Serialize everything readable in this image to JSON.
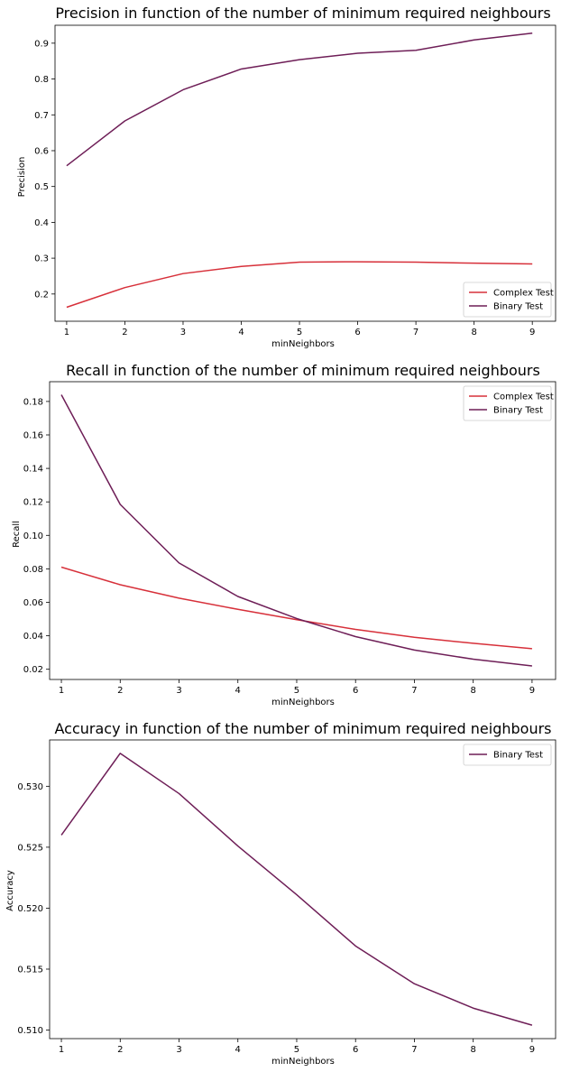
{
  "colors": {
    "complex": "#d7303a",
    "binary": "#6e1e57"
  },
  "chart_data": [
    {
      "type": "line",
      "title": "Precision in function of the number of minimum required neighbours",
      "xlabel": "minNeighbors",
      "ylabel": "Precision",
      "x": [
        1,
        2,
        3,
        4,
        5,
        6,
        7,
        8,
        9
      ],
      "xlim": [
        0.8,
        9.4
      ],
      "ylim": [
        0.124,
        0.95
      ],
      "xticks": [
        "1",
        "2",
        "3",
        "4",
        "5",
        "6",
        "7",
        "8",
        "9"
      ],
      "yticks": [
        "0.2",
        "0.3",
        "0.4",
        "0.5",
        "0.6",
        "0.7",
        "0.8",
        "0.9"
      ],
      "ytick_values": [
        0.2,
        0.3,
        0.4,
        0.5,
        0.6,
        0.7,
        0.8,
        0.9
      ],
      "legend_position": "lower-right",
      "series": [
        {
          "name": "Complex Test",
          "color_key": "complex",
          "values": [
            0.163,
            0.218,
            0.257,
            0.277,
            0.289,
            0.29,
            0.289,
            0.286,
            0.284
          ]
        },
        {
          "name": "Binary Test",
          "color_key": "binary",
          "values": [
            0.558,
            0.683,
            0.77,
            0.828,
            0.854,
            0.872,
            0.88,
            0.909,
            0.928
          ]
        }
      ]
    },
    {
      "type": "line",
      "title": "Recall in function of the number of minimum required neighbours",
      "xlabel": "minNeighbors",
      "ylabel": "Recall",
      "x": [
        1,
        2,
        3,
        4,
        5,
        6,
        7,
        8,
        9
      ],
      "xlim": [
        0.8,
        9.4
      ],
      "ylim": [
        0.0139,
        0.1918
      ],
      "xticks": [
        "1",
        "2",
        "3",
        "4",
        "5",
        "6",
        "7",
        "8",
        "9"
      ],
      "yticks": [
        "0.02",
        "0.04",
        "0.06",
        "0.08",
        "0.10",
        "0.12",
        "0.14",
        "0.16",
        "0.18"
      ],
      "ytick_values": [
        0.02,
        0.04,
        0.06,
        0.08,
        0.1,
        0.12,
        0.14,
        0.16,
        0.18
      ],
      "legend_position": "upper-right",
      "series": [
        {
          "name": "Complex Test",
          "color_key": "complex",
          "values": [
            0.081,
            0.0705,
            0.0625,
            0.0558,
            0.0496,
            0.0438,
            0.0391,
            0.0355,
            0.0323
          ]
        },
        {
          "name": "Binary Test",
          "color_key": "binary",
          "values": [
            0.184,
            0.1185,
            0.0835,
            0.0635,
            0.0503,
            0.0395,
            0.0315,
            0.026,
            0.022
          ]
        }
      ]
    },
    {
      "type": "line",
      "title": "Accuracy in function of the number of minimum required neighbours",
      "xlabel": "minNeighbors",
      "ylabel": "Accuracy",
      "x": [
        1,
        2,
        3,
        4,
        5,
        6,
        7,
        8,
        9
      ],
      "xlim": [
        0.8,
        9.4
      ],
      "ylim": [
        0.5093,
        0.5338
      ],
      "xticks": [
        "1",
        "2",
        "3",
        "4",
        "5",
        "6",
        "7",
        "8",
        "9"
      ],
      "yticks": [
        "0.510",
        "0.515",
        "0.520",
        "0.525",
        "0.530"
      ],
      "ytick_values": [
        0.51,
        0.515,
        0.52,
        0.525,
        0.53
      ],
      "legend_position": "upper-right",
      "series": [
        {
          "name": "Binary Test",
          "color_key": "binary",
          "values": [
            0.526,
            0.5327,
            0.5294,
            0.5251,
            0.5211,
            0.5169,
            0.5138,
            0.5118,
            0.5104
          ]
        }
      ]
    }
  ]
}
